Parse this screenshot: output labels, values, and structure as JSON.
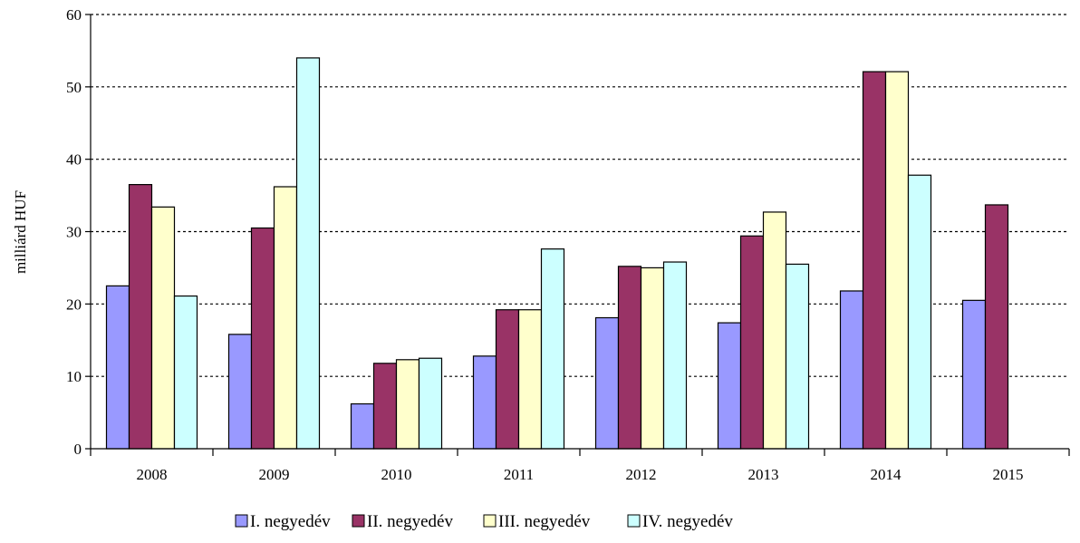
{
  "chart_data": {
    "type": "bar",
    "ylabel": "milliárd HUF",
    "xlabel": "",
    "ylim": [
      0,
      60
    ],
    "yticks": [
      0,
      10,
      20,
      30,
      40,
      50,
      60
    ],
    "grid": "horizontal-dashed",
    "legend_position": "bottom",
    "categories": [
      "2008",
      "2009",
      "2010",
      "2011",
      "2012",
      "2013",
      "2014",
      "2015"
    ],
    "series": [
      {
        "name": "I. negyedév",
        "color": "#9999ff",
        "values": [
          22.5,
          15.8,
          6.2,
          12.8,
          18.1,
          17.4,
          21.8,
          20.5
        ]
      },
      {
        "name": "II. negyedév",
        "color": "#993366",
        "values": [
          36.5,
          30.5,
          11.8,
          19.2,
          25.2,
          29.4,
          52.1,
          33.7
        ]
      },
      {
        "name": "III. negyedév",
        "color": "#ffffcc",
        "values": [
          33.4,
          36.2,
          12.3,
          19.2,
          25.0,
          32.7,
          52.1,
          null
        ]
      },
      {
        "name": "IV. negyedév",
        "color": "#ccffff",
        "values": [
          21.1,
          54.0,
          12.5,
          27.6,
          25.8,
          25.5,
          37.8,
          null
        ]
      }
    ]
  }
}
